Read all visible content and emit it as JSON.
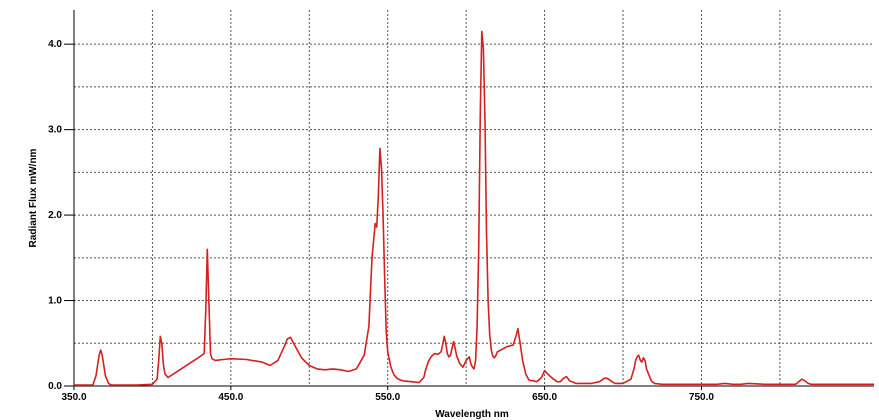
{
  "chart_data": {
    "type": "line",
    "title": "",
    "xlabel": "Wavelength  nm",
    "ylabel": "Radiant Flux   mW/nm",
    "xlim": [
      350,
      860
    ],
    "ylim": [
      0,
      4.4
    ],
    "x_ticks": [
      350,
      450,
      550,
      650,
      750
    ],
    "x_tick_labels": [
      "350.0",
      "450.0",
      "550.0",
      "650.0",
      "750.0"
    ],
    "x_gridlines": [
      400,
      450,
      500,
      550,
      600,
      650,
      700,
      750,
      800
    ],
    "y_ticks": [
      0,
      1,
      2,
      3,
      4
    ],
    "y_tick_labels": [
      "0.0",
      "1.0",
      "2.0",
      "3.0",
      "4.0"
    ],
    "y_gridlines": [
      0.5,
      1,
      1.5,
      2,
      2.5,
      3,
      3.5,
      4
    ],
    "grid": true,
    "line_color": "#d42020",
    "series": [
      {
        "x": [
          350,
          362,
          364,
          366,
          367,
          368,
          370,
          372,
          374,
          380,
          390,
          400,
          403,
          404,
          405,
          406,
          407,
          408,
          410,
          415,
          420,
          425,
          430,
          433,
          434,
          435,
          436,
          437,
          438,
          440,
          445,
          450,
          460,
          470,
          475,
          480,
          484,
          486,
          488,
          490,
          495,
          500,
          505,
          510,
          515,
          520,
          525,
          530,
          535,
          538,
          540,
          542,
          543,
          544,
          545,
          546,
          547,
          548,
          549,
          550,
          552,
          554,
          556,
          558,
          560,
          565,
          570,
          573,
          574,
          576,
          578,
          580,
          582,
          584,
          585,
          586,
          587,
          588,
          589,
          590,
          591,
          592,
          593,
          594,
          596,
          598,
          600,
          602,
          603,
          604,
          605,
          606,
          607,
          608,
          609,
          610,
          611,
          612,
          613,
          614,
          615,
          616,
          617,
          618,
          619,
          620,
          622,
          624,
          626,
          628,
          630,
          632,
          633,
          634,
          636,
          638,
          640,
          645,
          648,
          650,
          652,
          655,
          658,
          660,
          662,
          664,
          666,
          670,
          680,
          685,
          688,
          690,
          693,
          695,
          700,
          705,
          707,
          708,
          709,
          710,
          711,
          712,
          713,
          714,
          715,
          718,
          720,
          725,
          730,
          740,
          750,
          760,
          765,
          770,
          775,
          780,
          790,
          800,
          810,
          812,
          814,
          816,
          818,
          820,
          830,
          840,
          850,
          860
        ],
        "y": [
          0.01,
          0.01,
          0.12,
          0.36,
          0.42,
          0.36,
          0.12,
          0.03,
          0.01,
          0.01,
          0.01,
          0.02,
          0.08,
          0.3,
          0.58,
          0.5,
          0.25,
          0.14,
          0.1,
          0.16,
          0.22,
          0.28,
          0.34,
          0.38,
          0.9,
          1.6,
          0.98,
          0.38,
          0.32,
          0.3,
          0.31,
          0.32,
          0.31,
          0.28,
          0.24,
          0.3,
          0.46,
          0.55,
          0.57,
          0.5,
          0.33,
          0.24,
          0.2,
          0.19,
          0.2,
          0.19,
          0.17,
          0.2,
          0.36,
          0.7,
          1.5,
          1.9,
          1.86,
          2.22,
          2.78,
          2.55,
          2.02,
          1.3,
          0.64,
          0.4,
          0.22,
          0.13,
          0.09,
          0.07,
          0.06,
          0.05,
          0.04,
          0.1,
          0.18,
          0.29,
          0.35,
          0.38,
          0.37,
          0.4,
          0.48,
          0.58,
          0.5,
          0.38,
          0.34,
          0.36,
          0.44,
          0.52,
          0.44,
          0.35,
          0.26,
          0.22,
          0.3,
          0.34,
          0.26,
          0.22,
          0.2,
          0.3,
          0.7,
          1.6,
          3.2,
          4.15,
          3.95,
          3.1,
          1.8,
          1.0,
          0.6,
          0.42,
          0.35,
          0.33,
          0.36,
          0.4,
          0.42,
          0.44,
          0.46,
          0.47,
          0.48,
          0.6,
          0.67,
          0.55,
          0.3,
          0.14,
          0.07,
          0.05,
          0.1,
          0.18,
          0.14,
          0.09,
          0.05,
          0.05,
          0.09,
          0.11,
          0.06,
          0.03,
          0.03,
          0.05,
          0.09,
          0.09,
          0.05,
          0.03,
          0.03,
          0.08,
          0.2,
          0.3,
          0.34,
          0.36,
          0.3,
          0.28,
          0.33,
          0.3,
          0.2,
          0.06,
          0.03,
          0.02,
          0.02,
          0.02,
          0.02,
          0.02,
          0.03,
          0.02,
          0.02,
          0.03,
          0.02,
          0.02,
          0.02,
          0.05,
          0.08,
          0.06,
          0.03,
          0.02,
          0.02,
          0.02,
          0.02,
          0.02
        ]
      }
    ]
  }
}
